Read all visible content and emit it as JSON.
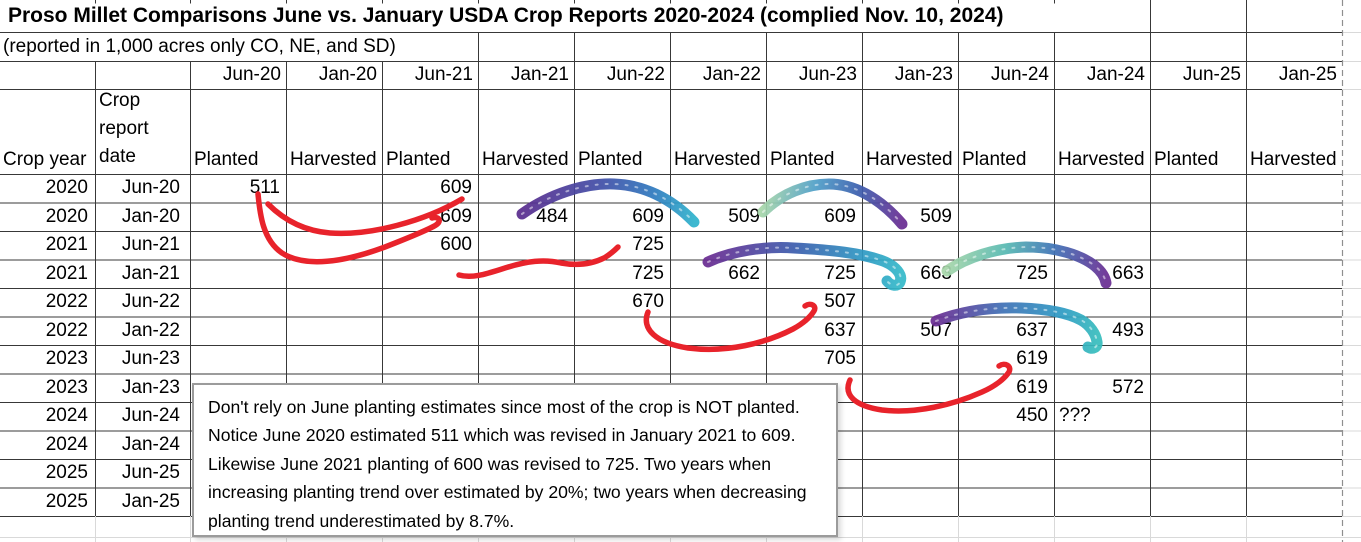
{
  "sheet": {
    "title": "Proso Millet Comparisons June vs. January USDA Crop Reports 2020-2024 (complied Nov. 10, 2024)",
    "subtitle": "(reported in 1,000 acres only CO, NE, and SD)"
  },
  "table": {
    "corner": {
      "crop_year": "Crop year",
      "report_date": "Crop report date"
    },
    "date_columns": [
      "Jun-20",
      "Jan-20",
      "Jun-21",
      "Jan-21",
      "Jun-22",
      "Jan-22",
      "Jun-23",
      "Jan-23",
      "Jun-24",
      "Jan-24",
      "Jun-25",
      "Jan-25"
    ],
    "subheaders": [
      "Planted",
      "Harvested",
      "Planted",
      "Harvested",
      "Planted",
      "Harvested",
      "Planted",
      "Harvested",
      "Planted",
      "Harvested",
      "Planted",
      "Harvested"
    ],
    "rows": [
      {
        "year": "2020",
        "report": "Jun-20",
        "cells": [
          "511",
          "",
          "609",
          "",
          "",
          "",
          "",
          "",
          "",
          "",
          "",
          ""
        ]
      },
      {
        "year": "2020",
        "report": "Jan-20",
        "cells": [
          "",
          "",
          "609",
          "484",
          "609",
          "509",
          "609",
          "509",
          "",
          "",
          "",
          ""
        ]
      },
      {
        "year": "2021",
        "report": "Jun-21",
        "cells": [
          "",
          "",
          "600",
          "",
          "725",
          "",
          "",
          "",
          "",
          "",
          "",
          ""
        ]
      },
      {
        "year": "2021",
        "report": "Jan-21",
        "cells": [
          "",
          "",
          "",
          "",
          "725",
          "662",
          "725",
          "663",
          "725",
          "663",
          "",
          ""
        ]
      },
      {
        "year": "2022",
        "report": "Jun-22",
        "cells": [
          "",
          "",
          "",
          "",
          "670",
          "",
          "507",
          "",
          "",
          "",
          "",
          ""
        ]
      },
      {
        "year": "2022",
        "report": "Jan-22",
        "cells": [
          "",
          "",
          "",
          "",
          "",
          "",
          "637",
          "507",
          "637",
          "493",
          "",
          ""
        ]
      },
      {
        "year": "2023",
        "report": "Jun-23",
        "cells": [
          "",
          "",
          "",
          "",
          "",
          "",
          "705",
          "",
          "619",
          "",
          "",
          ""
        ]
      },
      {
        "year": "2023",
        "report": "Jan-23",
        "cells": [
          "",
          "",
          "",
          "",
          "",
          "",
          "",
          "",
          "619",
          "572",
          "",
          ""
        ]
      },
      {
        "year": "2024",
        "report": "Jun-24",
        "cells": [
          "",
          "",
          "",
          "",
          "",
          "",
          "",
          "",
          "450",
          "???",
          "",
          ""
        ]
      },
      {
        "year": "2024",
        "report": "Jan-24",
        "cells": [
          "",
          "",
          "",
          "",
          "",
          "",
          "",
          "",
          "",
          "",
          "",
          ""
        ]
      },
      {
        "year": "2025",
        "report": "Jun-25",
        "cells": [
          "",
          "",
          "",
          "",
          "",
          "",
          "",
          "",
          "",
          "",
          "",
          ""
        ]
      },
      {
        "year": "2025",
        "report": "Jan-25",
        "cells": [
          "",
          "",
          "",
          "",
          "",
          "",
          "",
          "",
          "",
          "",
          "",
          ""
        ]
      }
    ]
  },
  "note": {
    "text": "Don't rely on June planting estimates since most of the crop is NOT planted. Notice June 2020 estimated 511 which was revised in January 2021 to 609. Likewise June 2021 planting of 600 was revised to 725. Two years when increasing planting trend over estimated by 20%; two years when decreasing planting trend underestimated by 8.7%."
  },
  "annotations": {
    "red_color": "#e8232b",
    "galaxy_colors": [
      "#6a2d92",
      "#3f72b6",
      "#2f9bc4",
      "#38bdbd",
      "#a7d6a9"
    ]
  }
}
